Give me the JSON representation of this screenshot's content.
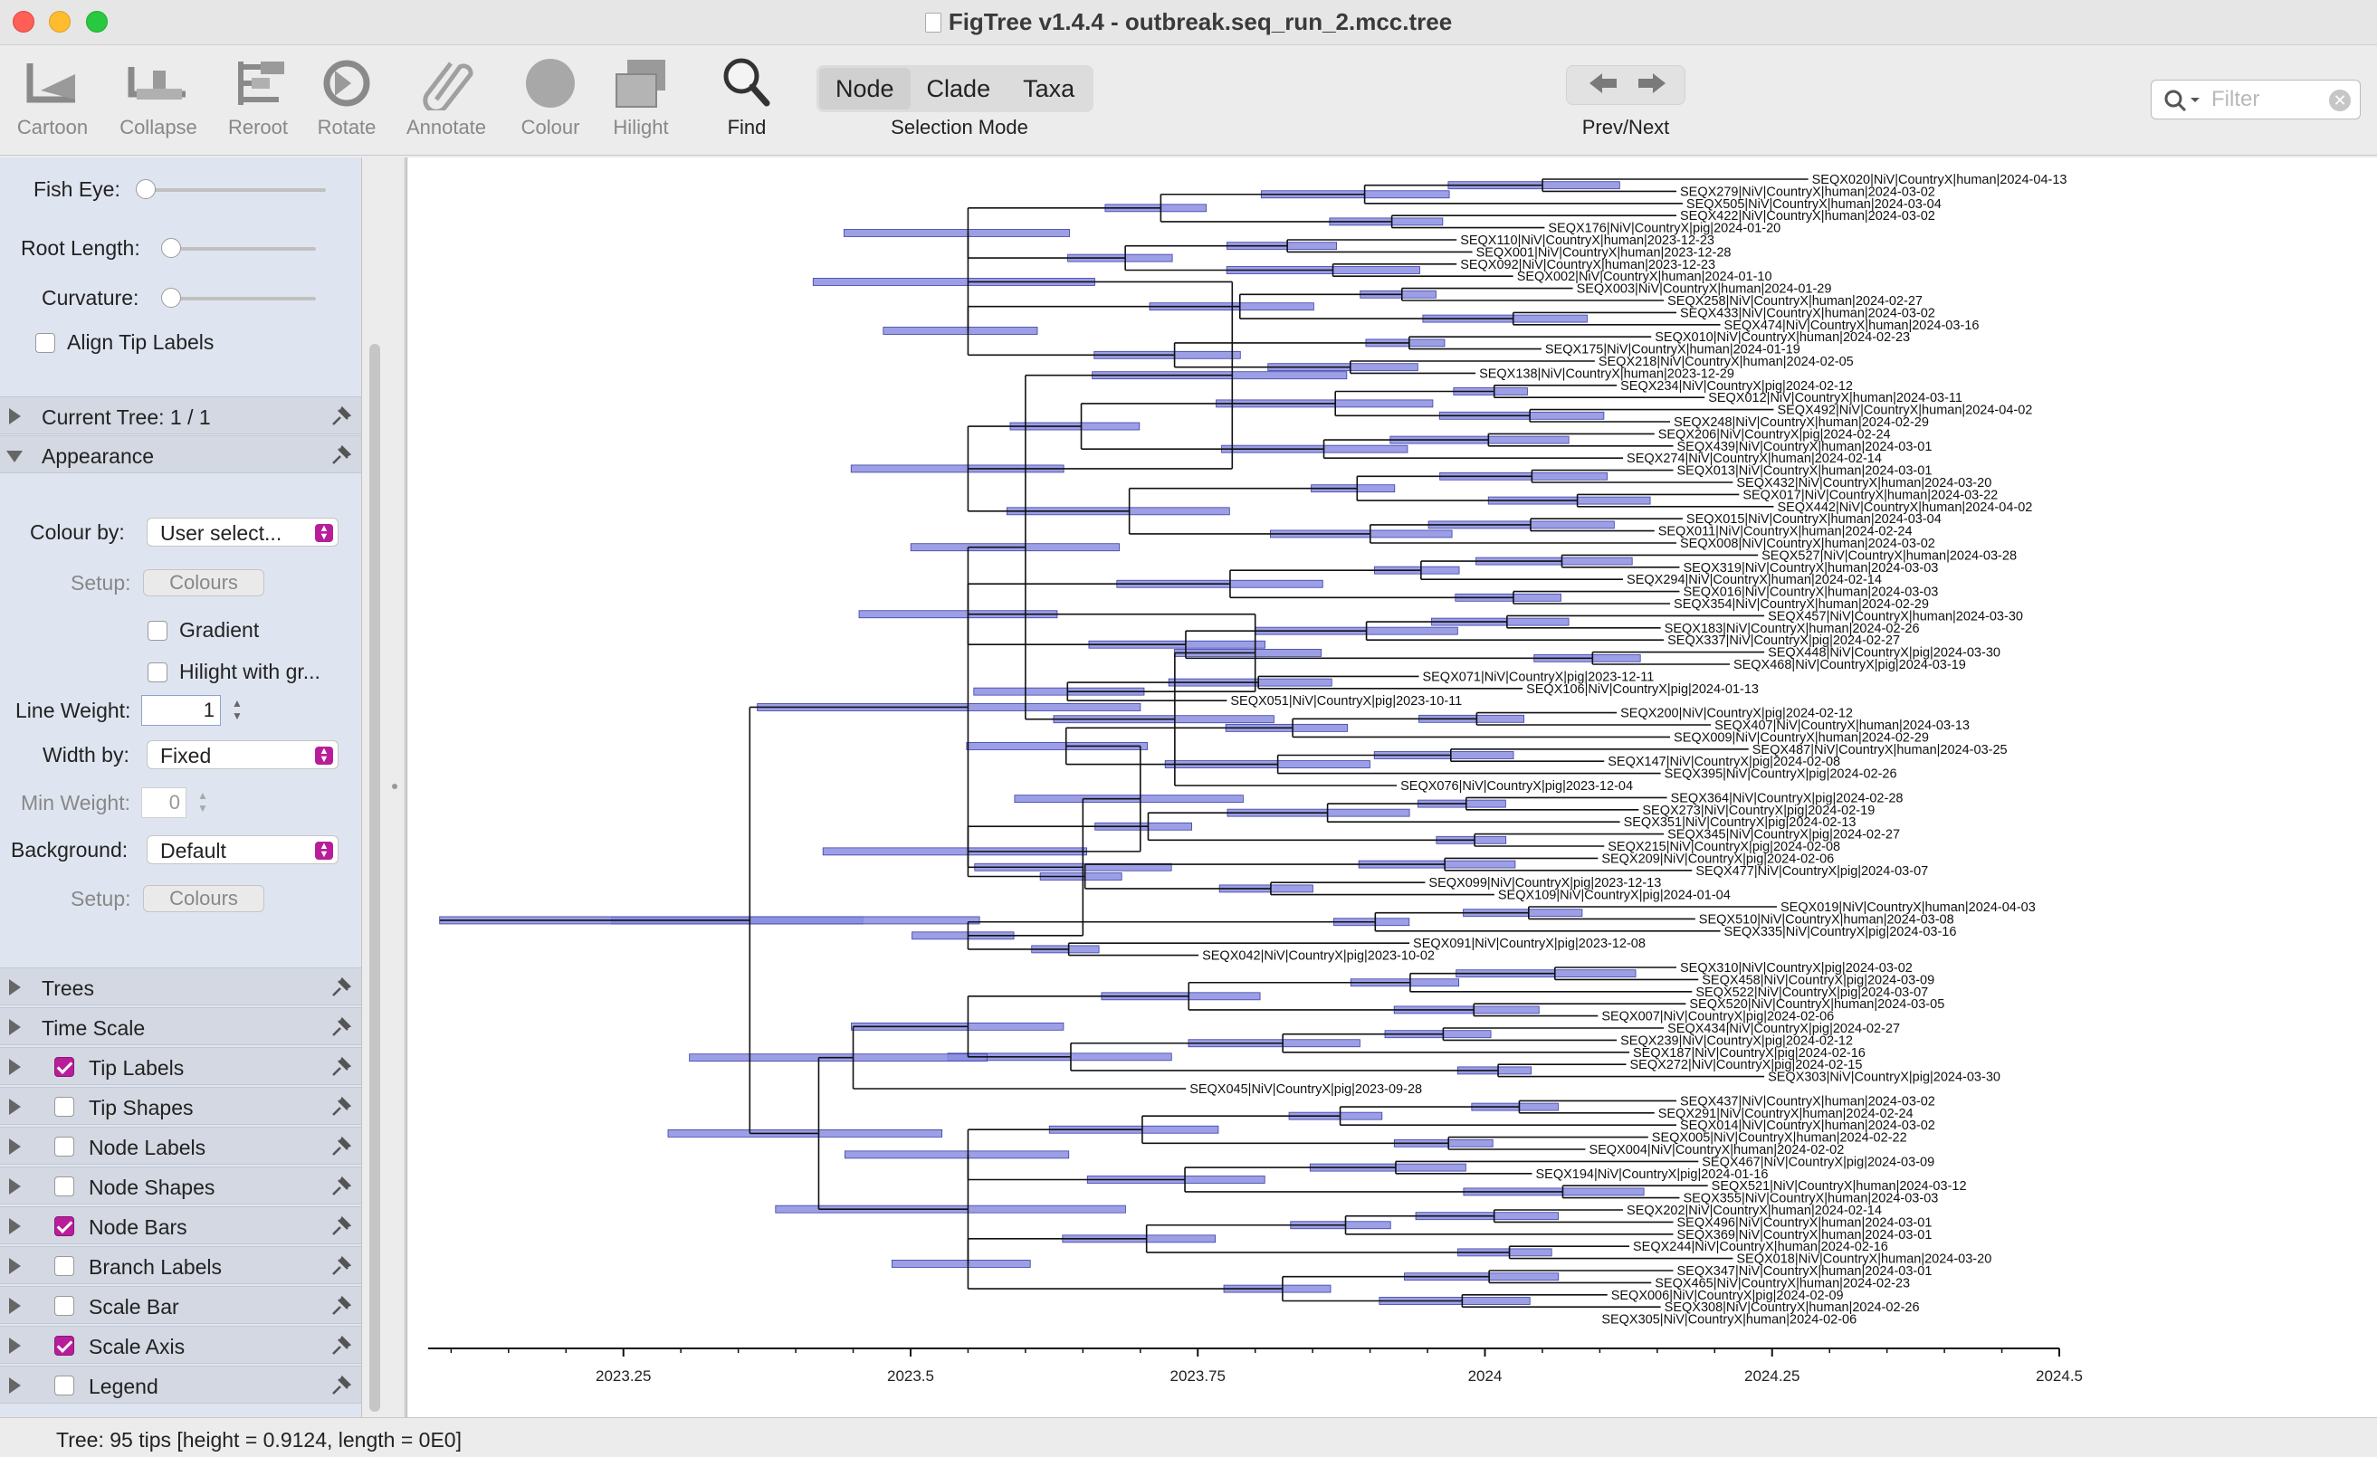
{
  "window": {
    "title": "FigTree v1.4.4 - outbreak.seq_run_2.mcc.tree"
  },
  "toolbar": {
    "tools": [
      {
        "label": "Cartoon",
        "icon": "cartoon-icon",
        "enabled": false
      },
      {
        "label": "Collapse",
        "icon": "collapse-icon",
        "enabled": false
      },
      {
        "label": "Reroot",
        "icon": "reroot-icon",
        "enabled": false
      },
      {
        "label": "Rotate",
        "icon": "rotate-icon",
        "enabled": false
      },
      {
        "label": "Annotate",
        "icon": "paperclip-icon",
        "enabled": false
      },
      {
        "label": "Colour",
        "icon": "colour-circle-icon",
        "enabled": false
      },
      {
        "label": "Hilight",
        "icon": "hilight-icon",
        "enabled": false
      },
      {
        "label": "Find",
        "icon": "magnifier-icon",
        "enabled": true
      }
    ],
    "selection_mode": {
      "options": [
        "Node",
        "Clade",
        "Taxa"
      ],
      "selected": "Node",
      "caption": "Selection Mode"
    },
    "nav": {
      "caption": "Prev/Next",
      "prev_icon": "arrow-left-icon",
      "next_icon": "arrow-right-icon"
    },
    "filter": {
      "placeholder": "Filter"
    }
  },
  "sidebar": {
    "fish_eye_label": "Fish Eye:",
    "root_length_label": "Root Length:",
    "curvature_label": "Curvature:",
    "align_tip_labels": {
      "label": "Align Tip Labels",
      "checked": false
    },
    "current_tree_label": "Current Tree: 1 / 1",
    "appearance_label": "Appearance",
    "colour_by": {
      "label": "Colour by:",
      "value": "User select..."
    },
    "setup1": {
      "label": "Setup:",
      "button": "Colours"
    },
    "gradient": {
      "label": "Gradient",
      "checked": false
    },
    "hilight_with": {
      "label": "Hilight with gr...",
      "checked": false
    },
    "line_weight": {
      "label": "Line Weight:",
      "value": "1"
    },
    "width_by": {
      "label": "Width by:",
      "value": "Fixed"
    },
    "min_weight": {
      "label": "Min Weight:",
      "value": "0"
    },
    "background": {
      "label": "Background:",
      "value": "Default"
    },
    "setup2": {
      "label": "Setup:",
      "button": "Colours"
    },
    "panels": [
      {
        "label": "Trees",
        "checkbox": null
      },
      {
        "label": "Time Scale",
        "checkbox": null
      },
      {
        "label": "Tip Labels",
        "checkbox": true
      },
      {
        "label": "Tip Shapes",
        "checkbox": false
      },
      {
        "label": "Node Labels",
        "checkbox": false
      },
      {
        "label": "Node Shapes",
        "checkbox": false
      },
      {
        "label": "Node Bars",
        "checkbox": true
      },
      {
        "label": "Branch Labels",
        "checkbox": false
      },
      {
        "label": "Scale Bar",
        "checkbox": false
      },
      {
        "label": "Scale Axis",
        "checkbox": true
      },
      {
        "label": "Legend",
        "checkbox": false
      }
    ]
  },
  "tree": {
    "bar_color": "#8b8ee0",
    "bar_stroke": "#3b3fa8",
    "axis": {
      "domain": [
        2023.08,
        2024.5
      ],
      "tick_labels": [
        "2023.25",
        "2023.5",
        "2023.75",
        "2024",
        "2024.25",
        "2024.5"
      ],
      "tick_values": [
        2023.25,
        2023.5,
        2023.75,
        2024.0,
        2024.25,
        2024.5
      ]
    },
    "tips": [
      "SEQX020|NiV|CountryX|human|2024-04-13",
      "SEQX279|NiV|CountryX|human|2024-03-02",
      "SEQX505|NiV|CountryX|human|2024-03-04",
      "SEQX422|NiV|CountryX|human|2024-03-02",
      "SEQX176|NiV|CountryX|pig|2024-01-20",
      "SEQX110|NiV|CountryX|human|2023-12-23",
      "SEQX001|NiV|CountryX|human|2023-12-28",
      "SEQX092|NiV|CountryX|human|2023-12-23",
      "SEQX002|NiV|CountryX|human|2024-01-10",
      "SEQX003|NiV|CountryX|human|2024-01-29",
      "SEQX258|NiV|CountryX|human|2024-02-27",
      "SEQX433|NiV|CountryX|human|2024-03-02",
      "SEQX474|NiV|CountryX|human|2024-03-16",
      "SEQX010|NiV|CountryX|human|2024-02-23",
      "SEQX175|NiV|CountryX|human|2024-01-19",
      "SEQX218|NiV|CountryX|human|2024-02-05",
      "SEQX138|NiV|CountryX|human|2023-12-29",
      "SEQX234|NiV|CountryX|pig|2024-02-12",
      "SEQX012|NiV|CountryX|human|2024-03-11",
      "SEQX492|NiV|CountryX|human|2024-04-02",
      "SEQX248|NiV|CountryX|human|2024-02-29",
      "SEQX206|NiV|CountryX|pig|2024-02-24",
      "SEQX439|NiV|CountryX|human|2024-03-01",
      "SEQX274|NiV|CountryX|human|2024-02-14",
      "SEQX013|NiV|CountryX|human|2024-03-01",
      "SEQX432|NiV|CountryX|human|2024-03-20",
      "SEQX017|NiV|CountryX|human|2024-03-22",
      "SEQX442|NiV|CountryX|human|2024-04-02",
      "SEQX015|NiV|CountryX|human|2024-03-04",
      "SEQX011|NiV|CountryX|human|2024-02-24",
      "SEQX008|NiV|CountryX|human|2024-03-02",
      "SEQX527|NiV|CountryX|human|2024-03-28",
      "SEQX319|NiV|CountryX|human|2024-03-03",
      "SEQX294|NiV|CountryX|human|2024-02-14",
      "SEQX016|NiV|CountryX|human|2024-03-03",
      "SEQX354|NiV|CountryX|human|2024-02-29",
      "SEQX457|NiV|CountryX|human|2024-03-30",
      "SEQX183|NiV|CountryX|human|2024-02-26",
      "SEQX337|NiV|CountryX|pig|2024-02-27",
      "SEQX448|NiV|CountryX|pig|2024-03-30",
      "SEQX468|NiV|CountryX|pig|2024-03-19",
      "SEQX071|NiV|CountryX|pig|2023-12-11",
      "SEQX106|NiV|CountryX|pig|2024-01-13",
      "SEQX051|NiV|CountryX|pig|2023-10-11",
      "SEQX200|NiV|CountryX|pig|2024-02-12",
      "SEQX407|NiV|CountryX|human|2024-03-13",
      "SEQX009|NiV|CountryX|human|2024-02-29",
      "SEQX487|NiV|CountryX|human|2024-03-25",
      "SEQX147|NiV|CountryX|pig|2024-02-08",
      "SEQX395|NiV|CountryX|pig|2024-02-26",
      "SEQX076|NiV|CountryX|pig|2023-12-04",
      "SEQX364|NiV|CountryX|pig|2024-02-28",
      "SEQX273|NiV|CountryX|pig|2024-02-19",
      "SEQX351|NiV|CountryX|pig|2024-02-13",
      "SEQX345|NiV|CountryX|pig|2024-02-27",
      "SEQX215|NiV|CountryX|pig|2024-02-08",
      "SEQX209|NiV|CountryX|pig|2024-02-06",
      "SEQX477|NiV|CountryX|pig|2024-03-07",
      "SEQX099|NiV|CountryX|pig|2023-12-13",
      "SEQX109|NiV|CountryX|pig|2024-01-04",
      "SEQX019|NiV|CountryX|human|2024-04-03",
      "SEQX510|NiV|CountryX|human|2024-03-08",
      "SEQX335|NiV|CountryX|pig|2024-03-16",
      "SEQX091|NiV|CountryX|pig|2023-12-08",
      "SEQX042|NiV|CountryX|pig|2023-10-02",
      "SEQX310|NiV|CountryX|pig|2024-03-02",
      "SEQX458|NiV|CountryX|pig|2024-03-09",
      "SEQX522|NiV|CountryX|pig|2024-03-07",
      "SEQX520|NiV|CountryX|human|2024-03-05",
      "SEQX007|NiV|CountryX|pig|2024-02-06",
      "SEQX434|NiV|CountryX|pig|2024-02-27",
      "SEQX239|NiV|CountryX|pig|2024-02-12",
      "SEQX187|NiV|CountryX|pig|2024-02-16",
      "SEQX272|NiV|CountryX|pig|2024-02-15",
      "SEQX303|NiV|CountryX|pig|2024-03-30",
      "SEQX045|NiV|CountryX|pig|2023-09-28",
      "SEQX437|NiV|CountryX|human|2024-03-02",
      "SEQX291|NiV|CountryX|human|2024-02-24",
      "SEQX014|NiV|CountryX|human|2024-03-02",
      "SEQX005|NiV|CountryX|human|2024-02-22",
      "SEQX004|NiV|CountryX|human|2024-02-02",
      "SEQX467|NiV|CountryX|pig|2024-03-09",
      "SEQX194|NiV|CountryX|pig|2024-01-16",
      "SEQX521|NiV|CountryX|human|2024-03-12",
      "SEQX355|NiV|CountryX|human|2024-03-03",
      "SEQX202|NiV|CountryX|human|2024-02-14",
      "SEQX496|NiV|CountryX|human|2024-03-01",
      "SEQX369|NiV|CountryX|human|2024-03-01",
      "SEQX244|NiV|CountryX|human|2024-02-16",
      "SEQX018|NiV|CountryX|human|2024-03-20",
      "SEQX347|NiV|CountryX|human|2024-03-01",
      "SEQX465|NiV|CountryX|human|2024-02-23",
      "SEQX006|NiV|CountryX|pig|2024-02-09",
      "SEQX308|NiV|CountryX|human|2024-02-26",
      "SEQX305|NiV|CountryX|human|2024-02-06"
    ]
  },
  "status": {
    "text": "Tree: 95 tips [height = 0.9124, length = 0E0]"
  }
}
